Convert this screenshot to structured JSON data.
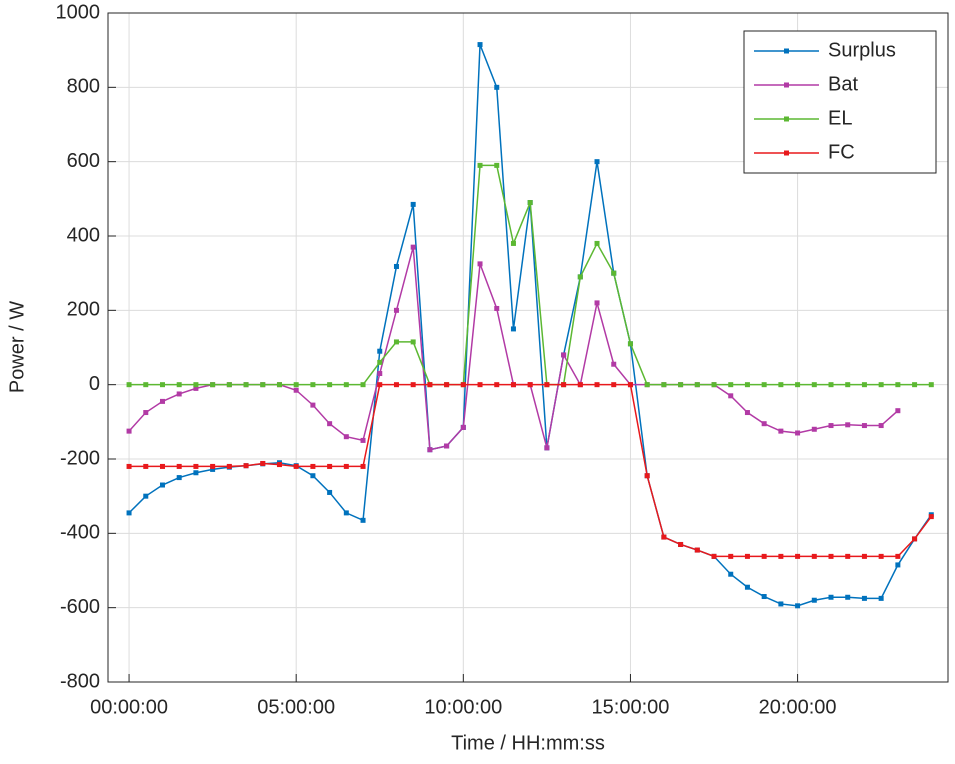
{
  "chart_data": {
    "type": "line",
    "xlabel": "Time / HH:mm:ss",
    "ylabel": "Power / W",
    "x": [
      0,
      0.5,
      1,
      1.5,
      2,
      2.5,
      3,
      3.5,
      4,
      4.5,
      5,
      5.5,
      6,
      6.5,
      7,
      7.5,
      8,
      8.5,
      9,
      9.5,
      10,
      10.5,
      11,
      11.5,
      12,
      12.5,
      13,
      13.5,
      14,
      14.5,
      15,
      15.5,
      16,
      16.5,
      17,
      17.5,
      18,
      18.5,
      19,
      19.5,
      20,
      20.5,
      21,
      21.5,
      22,
      22.5,
      23,
      23.5,
      24
    ],
    "series": [
      {
        "name": "Surplus",
        "color": "#0072bd",
        "values": [
          -345,
          -300,
          -270,
          -250,
          -237,
          -228,
          -222,
          -218,
          -213,
          -210,
          -218,
          -245,
          -290,
          -345,
          -365,
          90,
          318,
          485,
          -175,
          -165,
          -115,
          915,
          800,
          150,
          490,
          -170,
          80,
          290,
          600,
          300,
          110,
          -245,
          -410,
          -430,
          -445,
          -462,
          -510,
          -545,
          -570,
          -590,
          -595,
          -580,
          -572,
          -572,
          -575,
          -575,
          -485,
          -415,
          -350
        ]
      },
      {
        "name": "Bat",
        "color": "#b23aa5",
        "values": [
          -125,
          -75,
          -45,
          -25,
          -10,
          0,
          0,
          0,
          0,
          0,
          -15,
          -55,
          -105,
          -140,
          -150,
          30,
          200,
          370,
          -175,
          -165,
          -115,
          325,
          205,
          0,
          0,
          -170,
          80,
          0,
          220,
          55,
          0,
          0,
          0,
          0,
          0,
          0,
          -30,
          -75,
          -105,
          -125,
          -130,
          -120,
          -110,
          -108,
          -110,
          -110,
          -70,
          null,
          null
        ]
      },
      {
        "name": "EL",
        "color": "#5cb832",
        "values": [
          0,
          0,
          0,
          0,
          0,
          0,
          0,
          0,
          0,
          0,
          0,
          0,
          0,
          0,
          0,
          60,
          115,
          115,
          0,
          0,
          0,
          590,
          590,
          380,
          490,
          0,
          0,
          290,
          380,
          300,
          110,
          0,
          0,
          0,
          0,
          0,
          0,
          0,
          0,
          0,
          0,
          0,
          0,
          0,
          0,
          0,
          0,
          0,
          0
        ]
      },
      {
        "name": "FC",
        "color": "#e8191c",
        "values": [
          -220,
          -220,
          -220,
          -220,
          -220,
          -220,
          -220,
          -218,
          -212,
          -215,
          -220,
          -220,
          -220,
          -220,
          -220,
          0,
          0,
          0,
          0,
          0,
          0,
          0,
          0,
          0,
          0,
          0,
          0,
          0,
          0,
          0,
          0,
          -245,
          -410,
          -430,
          -445,
          -462,
          -462,
          -462,
          -462,
          -462,
          -462,
          -462,
          -462,
          -462,
          -462,
          -462,
          -462,
          -415,
          -355
        ]
      }
    ],
    "xlim": [
      -0.63,
      24.5
    ],
    "ylim": [
      -800,
      1000
    ],
    "xticks": [
      {
        "value": 0,
        "label": "00:00:00"
      },
      {
        "value": 5,
        "label": "05:00:00"
      },
      {
        "value": 10,
        "label": "10:00:00"
      },
      {
        "value": 15,
        "label": "15:00:00"
      },
      {
        "value": 20,
        "label": "20:00:00"
      }
    ],
    "yticks": [
      -800,
      -600,
      -400,
      -200,
      0,
      200,
      400,
      600,
      800,
      1000
    ],
    "grid": true,
    "legend": "top-right"
  }
}
